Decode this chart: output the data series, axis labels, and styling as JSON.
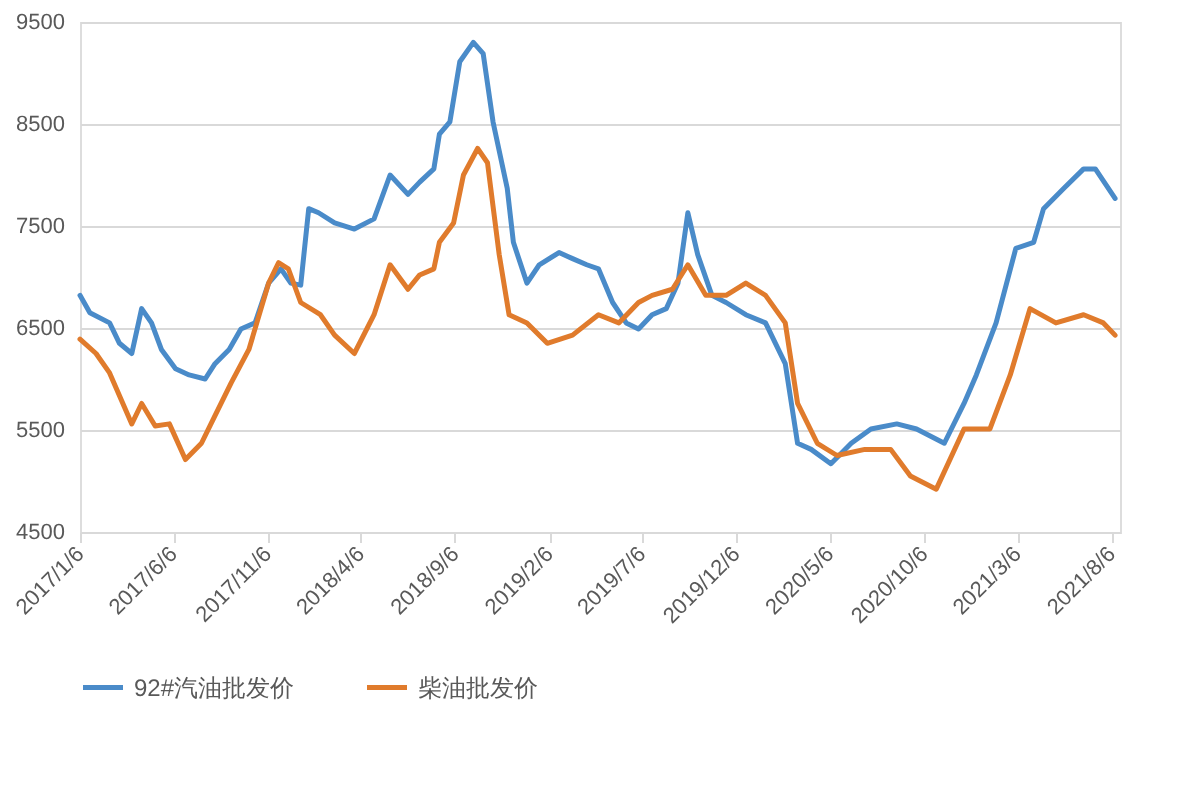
{
  "chart_data": {
    "type": "line",
    "xlim": [
      "2017-01-06",
      "2021-08-20"
    ],
    "xticks": [
      {
        "value": "2017-01-06",
        "label": "2017/1/6"
      },
      {
        "value": "2017-06-06",
        "label": "2017/6/6"
      },
      {
        "value": "2017-11-06",
        "label": "2017/11/6"
      },
      {
        "value": "2018-04-06",
        "label": "2018/4/6"
      },
      {
        "value": "2018-09-06",
        "label": "2018/9/6"
      },
      {
        "value": "2019-02-06",
        "label": "2019/2/6"
      },
      {
        "value": "2019-07-06",
        "label": "2019/7/6"
      },
      {
        "value": "2019-12-06",
        "label": "2019/12/6"
      },
      {
        "value": "2020-05-06",
        "label": "2020/5/6"
      },
      {
        "value": "2020-10-06",
        "label": "2020/10/6"
      },
      {
        "value": "2021-03-06",
        "label": "2021/3/6"
      },
      {
        "value": "2021-08-06",
        "label": "2021/8/6"
      }
    ],
    "ylim": [
      4500,
      9500
    ],
    "yticks": [
      4500,
      5500,
      6500,
      7500,
      8500,
      9500
    ],
    "grid": "y",
    "legend": "bottom",
    "line_style": "solid",
    "marker": "none",
    "series": [
      {
        "name": "92#汽油批发价",
        "color": "#4a8bc9",
        "x": [
          "2017-01-06",
          "2017-01-22",
          "2017-02-23",
          "2017-03-11",
          "2017-03-31",
          "2017-04-16",
          "2017-05-02",
          "2017-05-18",
          "2017-06-10",
          "2017-07-02",
          "2017-07-28",
          "2017-08-13",
          "2017-09-05",
          "2017-09-24",
          "2017-10-17",
          "2017-11-08",
          "2017-11-28",
          "2017-12-14",
          "2017-12-30",
          "2018-01-12",
          "2018-01-28",
          "2018-02-23",
          "2018-03-27",
          "2018-04-28",
          "2018-05-24",
          "2018-06-22",
          "2018-07-11",
          "2018-08-03",
          "2018-08-12",
          "2018-08-29",
          "2018-09-14",
          "2018-10-06",
          "2018-10-22",
          "2018-11-07",
          "2018-11-30",
          "2018-12-10",
          "2019-01-01",
          "2019-01-21",
          "2019-02-22",
          "2019-03-16",
          "2019-04-08",
          "2019-04-27",
          "2019-05-20",
          "2019-06-11",
          "2019-07-01",
          "2019-07-23",
          "2019-08-15",
          "2019-09-03",
          "2019-09-19",
          "2019-10-05",
          "2019-10-28",
          "2019-11-20",
          "2019-12-22",
          "2020-01-23",
          "2020-02-24",
          "2020-03-15",
          "2020-04-06",
          "2020-05-08",
          "2020-06-10",
          "2020-07-12",
          "2020-08-23",
          "2020-09-24",
          "2020-11-08",
          "2020-12-10",
          "2020-12-30",
          "2021-01-31",
          "2021-03-04",
          "2021-04-02",
          "2021-04-18",
          "2021-05-21",
          "2021-06-22",
          "2021-07-11",
          "2021-08-12"
        ],
        "values": [
          6820,
          6650,
          6550,
          6350,
          6250,
          6690,
          6550,
          6290,
          6100,
          6040,
          6000,
          6150,
          6290,
          6490,
          6550,
          6940,
          7080,
          6940,
          6920,
          7670,
          7630,
          7530,
          7470,
          7570,
          8000,
          7810,
          7930,
          8060,
          8400,
          8520,
          9110,
          9300,
          9190,
          8520,
          7870,
          7340,
          6940,
          7120,
          7240,
          7180,
          7120,
          7080,
          6750,
          6550,
          6490,
          6630,
          6690,
          6940,
          7630,
          7220,
          6820,
          6750,
          6630,
          6550,
          6150,
          5370,
          5310,
          5170,
          5370,
          5510,
          5560,
          5510,
          5370,
          5760,
          6040,
          6550,
          7280,
          7340,
          7670,
          7870,
          8060,
          8060,
          7770
        ]
      },
      {
        "name": "柴油批发价",
        "color": "#e07b2c",
        "x": [
          "2017-01-06",
          "2017-02-01",
          "2017-02-23",
          "2017-03-31",
          "2017-04-16",
          "2017-05-08",
          "2017-05-31",
          "2017-06-26",
          "2017-07-22",
          "2017-08-13",
          "2017-09-08",
          "2017-10-07",
          "2017-11-08",
          "2017-11-24",
          "2017-12-10",
          "2017-12-30",
          "2018-01-31",
          "2018-02-23",
          "2018-03-27",
          "2018-04-28",
          "2018-05-24",
          "2018-06-22",
          "2018-07-11",
          "2018-08-03",
          "2018-08-12",
          "2018-09-04",
          "2018-09-20",
          "2018-10-13",
          "2018-10-29",
          "2018-11-17",
          "2018-12-03",
          "2019-01-01",
          "2019-02-03",
          "2019-03-16",
          "2019-04-27",
          "2019-05-30",
          "2019-07-01",
          "2019-07-23",
          "2019-08-25",
          "2019-09-19",
          "2019-10-18",
          "2019-11-20",
          "2019-12-22",
          "2020-01-23",
          "2020-02-24",
          "2020-03-15",
          "2020-04-16",
          "2020-05-18",
          "2020-07-02",
          "2020-08-13",
          "2020-09-14",
          "2020-10-26",
          "2020-12-10",
          "2021-01-21",
          "2021-02-23",
          "2021-03-27",
          "2021-05-08",
          "2021-06-22",
          "2021-07-24",
          "2021-08-12"
        ],
        "values": [
          6390,
          6250,
          6060,
          5560,
          5760,
          5540,
          5560,
          5210,
          5370,
          5640,
          5960,
          6290,
          6940,
          7140,
          7080,
          6750,
          6630,
          6430,
          6250,
          6630,
          7120,
          6880,
          7020,
          7080,
          7340,
          7530,
          8000,
          8260,
          8120,
          7220,
          6630,
          6550,
          6350,
          6430,
          6630,
          6550,
          6750,
          6820,
          6880,
          7120,
          6820,
          6820,
          6940,
          6820,
          6550,
          5760,
          5370,
          5250,
          5310,
          5310,
          5050,
          4920,
          5510,
          5510,
          6040,
          6690,
          6550,
          6630,
          6550,
          6430
        ]
      }
    ]
  }
}
